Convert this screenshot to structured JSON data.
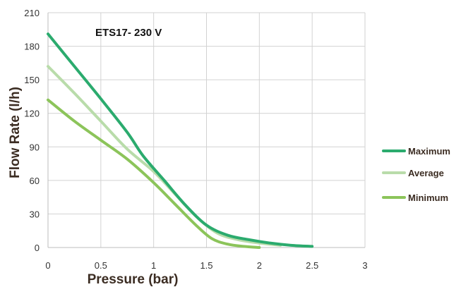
{
  "chart_data": {
    "type": "line",
    "title": "ETS17- 230 V",
    "xlabel": "Pressure (bar)",
    "ylabel": "Flow Rate (l/h)",
    "xlim": [
      0,
      3
    ],
    "ylim": [
      0,
      210
    ],
    "x_ticks": [
      "0",
      "0.5",
      "1",
      "1.5",
      "2",
      "2.5",
      "3"
    ],
    "y_ticks": [
      "0",
      "30",
      "60",
      "90",
      "120",
      "150",
      "180",
      "210"
    ],
    "grid": true,
    "legend_position": "right",
    "series": [
      {
        "name": "Maximum",
        "color": "#2bab6e",
        "x": [
          0,
          0.25,
          0.5,
          0.75,
          0.9,
          1.1,
          1.3,
          1.5,
          1.7,
          1.9,
          2.1,
          2.3,
          2.5
        ],
        "y": [
          191,
          162,
          133,
          103,
          82,
          60,
          38,
          20,
          11,
          7,
          4,
          2,
          1
        ]
      },
      {
        "name": "Average",
        "color": "#b9dcaa",
        "x": [
          0,
          0.25,
          0.5,
          0.75,
          1.0,
          1.2,
          1.4,
          1.6,
          1.8,
          2.0,
          2.2
        ],
        "y": [
          162,
          138,
          113,
          88,
          68,
          48,
          28,
          13,
          7,
          4,
          2
        ]
      },
      {
        "name": "Minimum",
        "color": "#8cc45a",
        "x": [
          0,
          0.25,
          0.5,
          0.75,
          1.0,
          1.2,
          1.4,
          1.55,
          1.7,
          1.85,
          2.0
        ],
        "y": [
          132,
          113,
          96,
          79,
          58,
          39,
          20,
          8,
          3,
          1,
          0
        ]
      }
    ]
  }
}
